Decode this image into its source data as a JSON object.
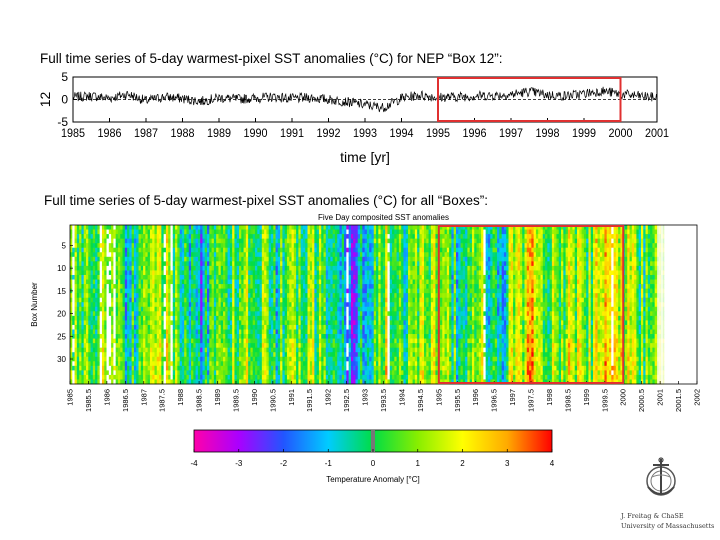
{
  "headings": {
    "top": "Full time series of 5-day warmest-pixel SST anomalies (°C) for NEP “Box 12”:",
    "bottom": "Full time series of 5-day warmest-pixel SST anomalies (°C) for all “Boxes”:"
  },
  "chart_data": [
    {
      "type": "line",
      "title": "",
      "ylabel": "12",
      "xlabel": "time [yr]",
      "xlim": [
        1985,
        2001
      ],
      "ylim": [
        -5,
        5
      ],
      "xticks": [
        "1985",
        "1986",
        "1987",
        "1988",
        "1989",
        "1990",
        "1991",
        "1992",
        "1993",
        "1994",
        "1995",
        "1996",
        "1997",
        "1998",
        "1999",
        "2000",
        "2001"
      ],
      "yticks": [
        "5",
        "0",
        "-5"
      ],
      "reference_line": 0,
      "highlight": {
        "x_start": 1995,
        "x_end": 2000,
        "color": "#e03030"
      },
      "x": [
        1985,
        1985.5,
        1986,
        1986.5,
        1987,
        1987.5,
        1988,
        1988.5,
        1989,
        1989.5,
        1990,
        1990.5,
        1991,
        1991.5,
        1992,
        1992.5,
        1993,
        1993.5,
        1994,
        1994.5,
        1995,
        1995.5,
        1996,
        1996.5,
        1997,
        1997.5,
        1998,
        1998.5,
        1999,
        1999.5,
        2000,
        2000.5,
        2001
      ],
      "y": [
        0.5,
        0.8,
        0.3,
        1.2,
        -0.3,
        0.6,
        0.2,
        -0.4,
        0.4,
        0.1,
        0.3,
        0.6,
        0.2,
        0.4,
        0.0,
        -0.5,
        -1.2,
        -1.8,
        0.3,
        1.0,
        0.5,
        0.6,
        0.8,
        0.9,
        1.1,
        1.8,
        1.0,
        0.8,
        1.3,
        1.9,
        1.2,
        0.8,
        0.4
      ]
    },
    {
      "type": "heatmap",
      "title": "Five Day composited SST anomalies",
      "ylabel": "Box Number",
      "xlabel": "",
      "xlim": [
        1985,
        2002
      ],
      "ylim": [
        1,
        35
      ],
      "yticks": [
        "5",
        "10",
        "15",
        "20",
        "25",
        "30"
      ],
      "xticks": [
        "1985",
        "1985.5",
        "1986",
        "1986.5",
        "1987",
        "1987.5",
        "1988",
        "1988.5",
        "1989",
        "1989.5",
        "1990",
        "1990.5",
        "1991",
        "1991.5",
        "1992",
        "1992.5",
        "1993",
        "1993.5",
        "1994",
        "1994.5",
        "1995",
        "1995.5",
        "1996",
        "1996.5",
        "1997",
        "1997.5",
        "1998",
        "1998.5",
        "1999",
        "1999.5",
        "2000",
        "2000.5",
        "2001",
        "2001.5",
        "2002"
      ],
      "highlight": {
        "x_start": 1995,
        "x_end": 2000,
        "color": "#e03030"
      },
      "colorbar": {
        "label": "Temperature Anomaly [°C]",
        "range": [
          -4,
          4
        ],
        "ticks": [
          "-4",
          "-3",
          "-2",
          "-1",
          "0",
          "1",
          "2",
          "3",
          "4"
        ],
        "colors": [
          "#ff00aa",
          "#aa00ff",
          "#2255ff",
          "#00ccff",
          "#00dd44",
          "#88ee00",
          "#ffff00",
          "#ffaa00",
          "#ff0000"
        ]
      },
      "x": [
        1985,
        1985.5,
        1986,
        1986.5,
        1987,
        1987.5,
        1988,
        1988.5,
        1989,
        1989.5,
        1990,
        1990.5,
        1991,
        1991.5,
        1992,
        1992.5,
        1993,
        1993.5,
        1994,
        1994.5,
        1995,
        1995.5,
        1996,
        1996.5,
        1997,
        1997.5,
        1998,
        1998.5,
        1999,
        1999.5,
        2000,
        2000.5
      ],
      "values": [
        0.6,
        0.2,
        1.0,
        -0.5,
        0.4,
        1.2,
        0.1,
        -1.6,
        0.8,
        0.3,
        1.1,
        -0.2,
        0.5,
        0.9,
        0.0,
        -1.9,
        -0.8,
        1.3,
        -0.3,
        0.7,
        0.9,
        -0.4,
        1.5,
        -1.2,
        1.0,
        2.0,
        0.3,
        1.4,
        0.8,
        1.9,
        1.2,
        0.4
      ]
    }
  ],
  "logo": {
    "text_line1": "J. Freitag & ChaSE",
    "text_line2": "University of Massachusetts"
  }
}
